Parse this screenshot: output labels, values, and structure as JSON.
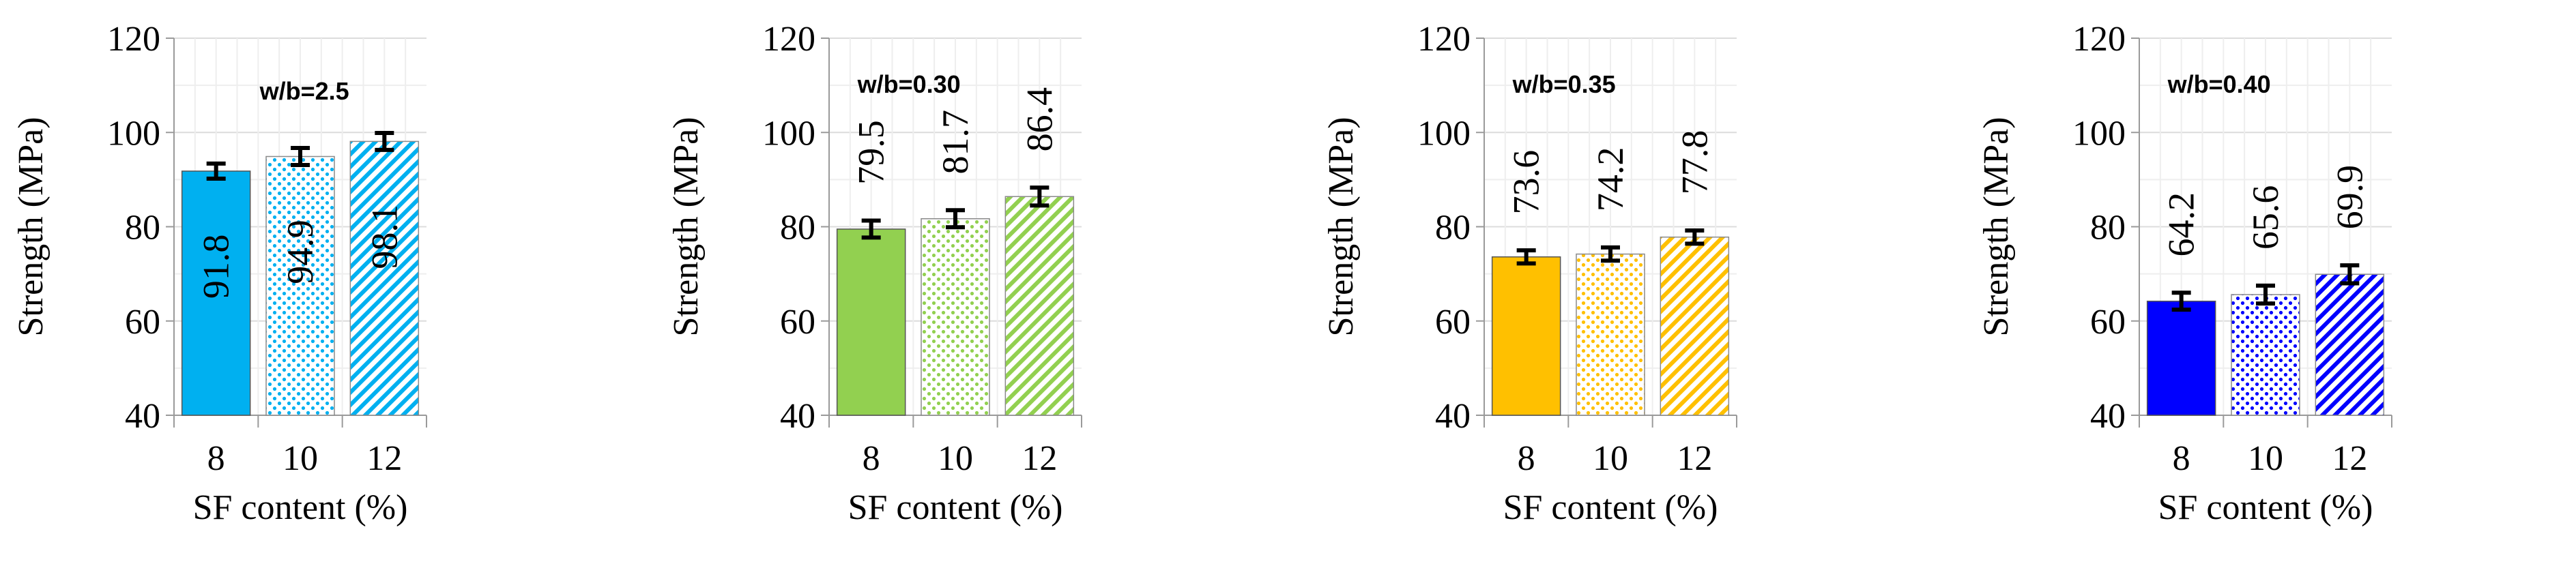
{
  "chart_data": [
    {
      "type": "bar",
      "title": "w/b=2.5",
      "xlabel": "SF content (%)",
      "ylabel": "Strength (MPa)",
      "ylim": [
        40,
        120
      ],
      "yticks": [
        40,
        60,
        80,
        100,
        120
      ],
      "grid": true,
      "categories": [
        "8",
        "10",
        "12"
      ],
      "values": [
        91.8,
        94.9,
        98.1
      ],
      "value_labels": [
        "91.8",
        "94.9",
        "98.1"
      ],
      "error": [
        1.6,
        1.8,
        1.8
      ],
      "label_position": "inside",
      "color": "#00B0F0",
      "fill_styles": [
        "solid",
        "dots",
        "diagonal"
      ]
    },
    {
      "type": "bar",
      "title": "w/b=0.30",
      "xlabel": "SF content (%)",
      "ylabel": "Strength (MPa)",
      "ylim": [
        40,
        120
      ],
      "yticks": [
        40,
        60,
        80,
        100,
        120
      ],
      "grid": true,
      "categories": [
        "8",
        "10",
        "12"
      ],
      "values": [
        79.5,
        81.7,
        86.4
      ],
      "value_labels": [
        "79.5",
        "81.7",
        "86.4"
      ],
      "error": [
        1.8,
        1.8,
        1.9
      ],
      "label_position": "above",
      "color": "#92D050",
      "fill_styles": [
        "solid",
        "dots",
        "diagonal"
      ]
    },
    {
      "type": "bar",
      "title": "w/b=0.35",
      "xlabel": "SF content (%)",
      "ylabel": "Strength (MPa)",
      "ylim": [
        40,
        120
      ],
      "yticks": [
        40,
        60,
        80,
        100,
        120
      ],
      "grid": true,
      "categories": [
        "8",
        "10",
        "12"
      ],
      "values": [
        73.6,
        74.2,
        77.8
      ],
      "value_labels": [
        "73.6",
        "74.2",
        "77.8"
      ],
      "error": [
        1.4,
        1.4,
        1.4
      ],
      "label_position": "above",
      "color": "#FFC000",
      "fill_styles": [
        "solid",
        "dots",
        "diagonal"
      ]
    },
    {
      "type": "bar",
      "title": "w/b=0.40",
      "xlabel": "SF content (%)",
      "ylabel": "Strength (MPa)",
      "ylim": [
        40,
        120
      ],
      "yticks": [
        40,
        60,
        80,
        100,
        120
      ],
      "grid": true,
      "categories": [
        "8",
        "10",
        "12"
      ],
      "values": [
        64.2,
        65.6,
        69.9
      ],
      "value_labels": [
        "64.2",
        "65.6",
        "69.9"
      ],
      "error": [
        1.8,
        1.9,
        1.9
      ],
      "label_position": "above",
      "color": "#0000FF",
      "fill_styles": [
        "solid",
        "dots",
        "diagonal"
      ]
    }
  ]
}
